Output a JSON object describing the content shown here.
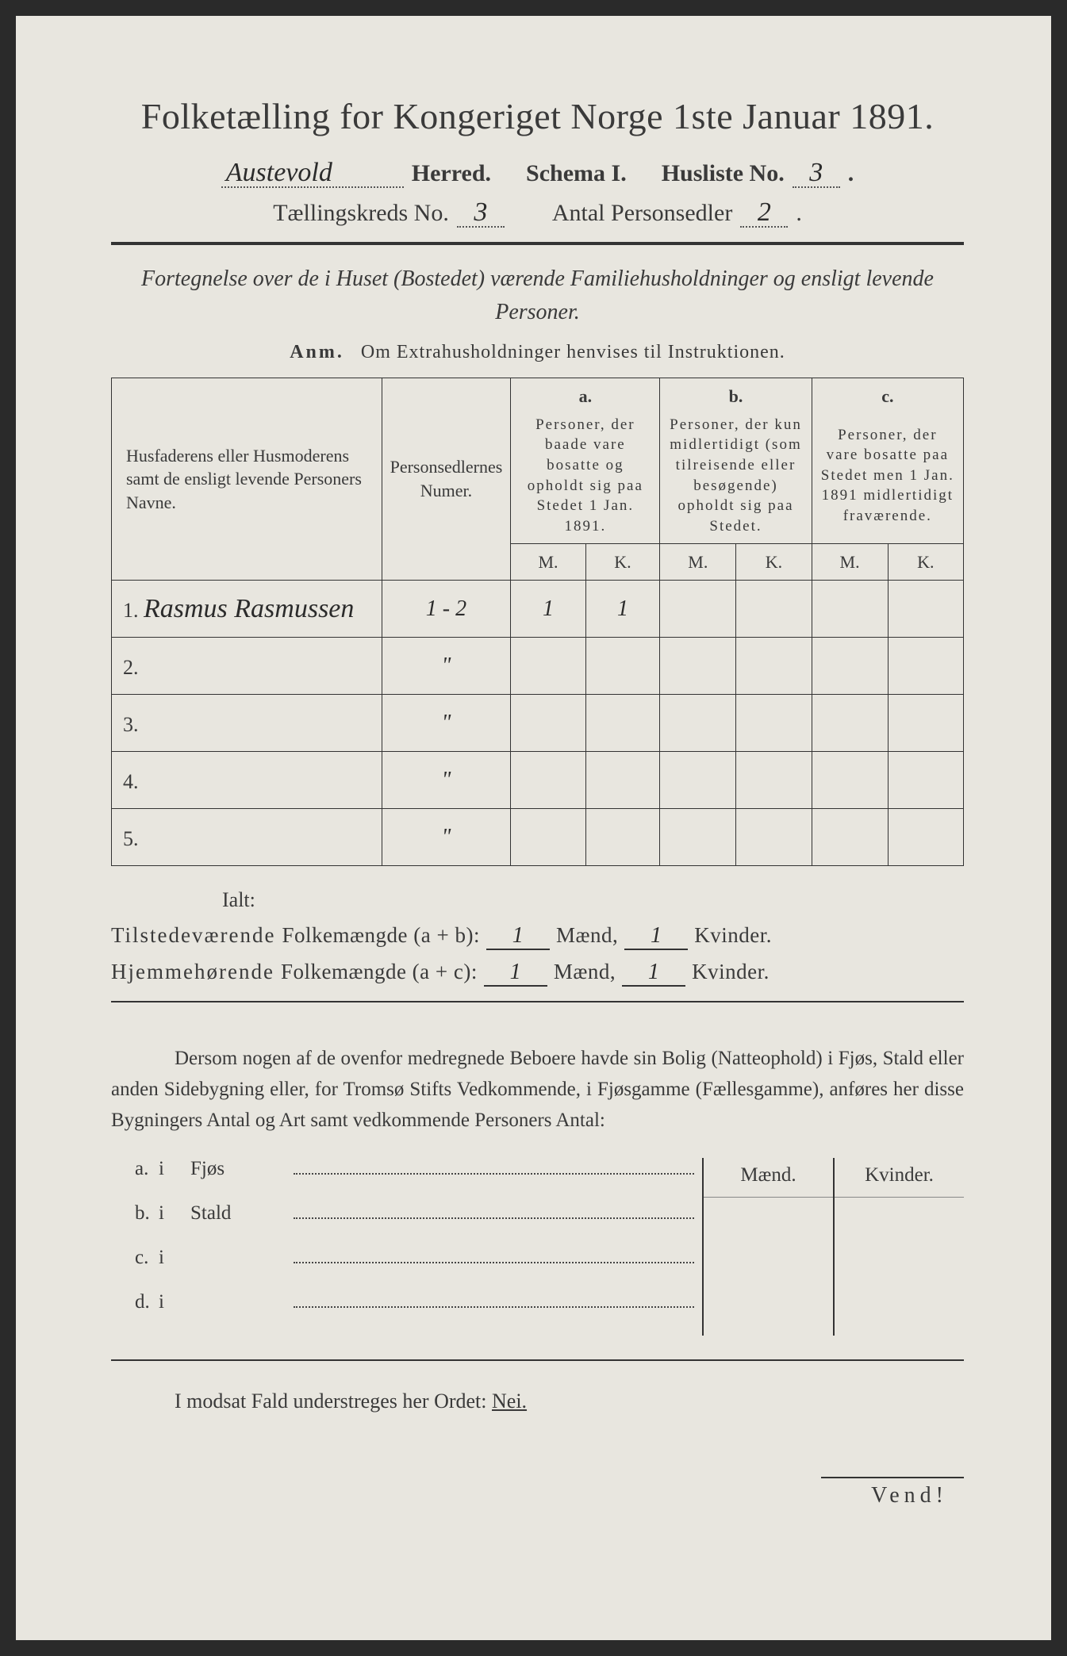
{
  "title": "Folketælling for Kongeriget Norge 1ste Januar 1891.",
  "header": {
    "herred_value": "Austevold",
    "herred_label": "Herred.",
    "schema_label": "Schema I.",
    "husliste_label": "Husliste No.",
    "husliste_value": "3",
    "kreds_label": "Tællingskreds No.",
    "kreds_value": "3",
    "antal_label": "Antal Personsedler",
    "antal_value": "2"
  },
  "subtitle": "Fortegnelse over de i Huset (Bostedet) værende Familiehusholdninger og ensligt levende Personer.",
  "anm_label": "Anm.",
  "anm_text": "Om Extrahusholdninger henvises til Instruktionen.",
  "table": {
    "col_name": "Husfaderens eller Husmoderens samt de ensligt levende Personers Navne.",
    "col_num": "Personsedlernes Numer.",
    "col_a_top": "a.",
    "col_a": "Personer, der baade vare bosatte og opholdt sig paa Stedet 1 Jan. 1891.",
    "col_b_top": "b.",
    "col_b": "Personer, der kun midlertidigt (som tilreisende eller besøgende) opholdt sig paa Stedet.",
    "col_c_top": "c.",
    "col_c": "Personer, der vare bosatte paa Stedet men 1 Jan. 1891 midlertidigt fraværende.",
    "mk_m": "M.",
    "mk_k": "K.",
    "rows": [
      {
        "n": "1.",
        "name": "Rasmus Rasmussen",
        "num": "1 - 2",
        "a_m": "1",
        "a_k": "1"
      },
      {
        "n": "2.",
        "name": "",
        "num": "\"",
        "a_m": "",
        "a_k": ""
      },
      {
        "n": "3.",
        "name": "",
        "num": "\"",
        "a_m": "",
        "a_k": ""
      },
      {
        "n": "4.",
        "name": "",
        "num": "\"",
        "a_m": "",
        "a_k": ""
      },
      {
        "n": "5.",
        "name": "",
        "num": "\"",
        "a_m": "",
        "a_k": ""
      }
    ]
  },
  "ialt": "Ialt:",
  "sum": {
    "line1_a": "Tilstedeværende",
    "line1_b": "Folkemængde (a + b):",
    "line2_a": "Hjemmehørende",
    "line2_b": "Folkemængde (a + c):",
    "maend": "Mænd,",
    "kvinder": "Kvinder.",
    "v1m": "1",
    "v1k": "1",
    "v2m": "1",
    "v2k": "1"
  },
  "para": "Dersom nogen af de ovenfor medregnede Beboere havde sin Bolig (Natteophold) i Fjøs, Stald eller anden Sidebygning eller, for Tromsø Stifts Vedkommende, i Fjøsgamme (Fællesgamme), anføres her disse Bygningers Antal og Art samt vedkommende Personers Antal:",
  "bld": {
    "head_m": "Mænd.",
    "head_k": "Kvinder.",
    "rows": [
      {
        "lab": "a.",
        "i": "i",
        "txt": "Fjøs"
      },
      {
        "lab": "b.",
        "i": "i",
        "txt": "Stald"
      },
      {
        "lab": "c.",
        "i": "i",
        "txt": ""
      },
      {
        "lab": "d.",
        "i": "i",
        "txt": ""
      }
    ]
  },
  "footer1_a": "I modsat Fald understreges her Ordet:",
  "footer1_b": "Nei.",
  "vend": "Vend!",
  "colors": {
    "page_bg": "#e8e6df",
    "text": "#3a3a3a",
    "rule": "#333333",
    "dotted": "#555555"
  }
}
